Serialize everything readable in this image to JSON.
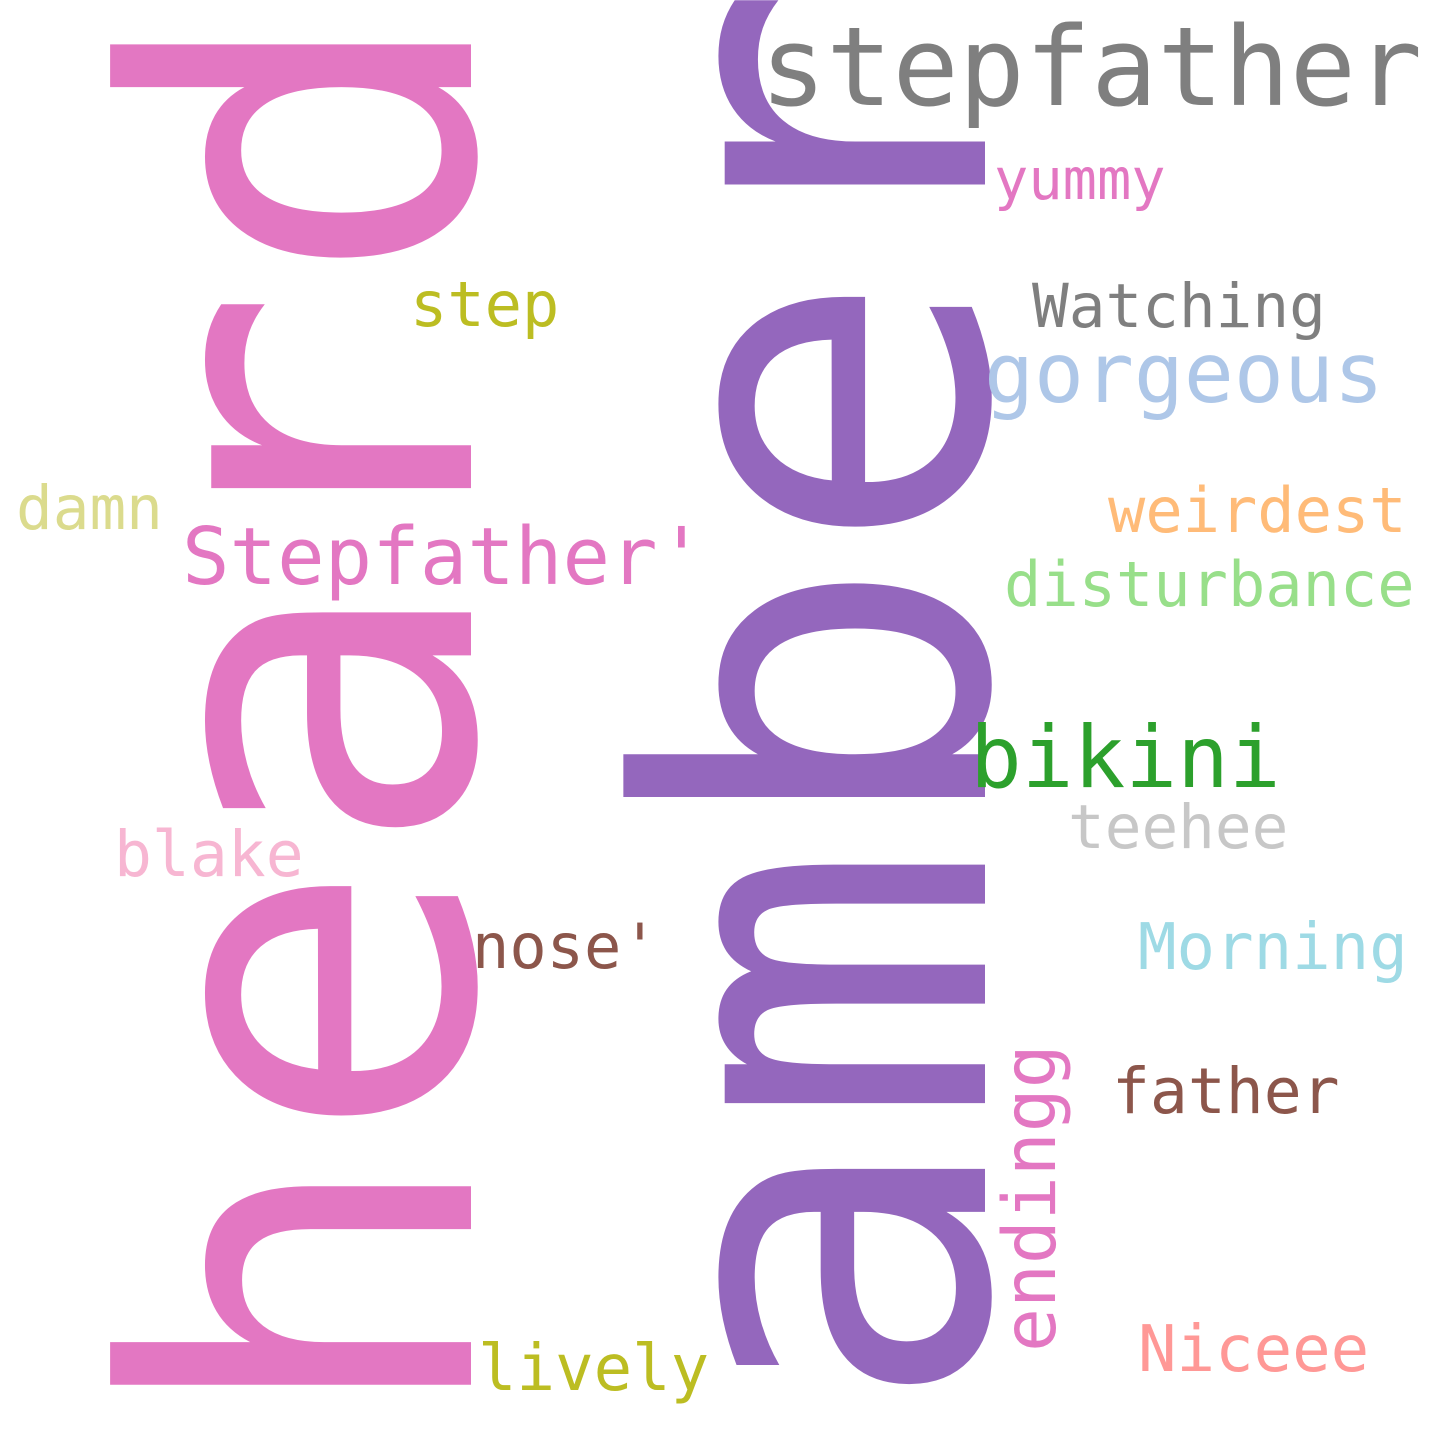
{
  "words": {
    "heard": {
      "text": "heard",
      "color": "#e377c2"
    },
    "amber": {
      "text": "amber",
      "color": "#9467bd"
    },
    "stepfather": {
      "text": "stepfather",
      "color": "#7f7f7f"
    },
    "yummy": {
      "text": "yummy",
      "color": "#e377c2"
    },
    "step": {
      "text": "step",
      "color": "#bcbd22"
    },
    "watching": {
      "text": "Watching",
      "color": "#7f7f7f"
    },
    "gorgeous": {
      "text": "gorgeous",
      "color": "#aec7e8"
    },
    "damn": {
      "text": "damn",
      "color": "#dbdb8d"
    },
    "weirdest": {
      "text": "weirdest",
      "color": "#ffbb78"
    },
    "stepfather2": {
      "text": "Stepfather'",
      "color": "#e377c2"
    },
    "disturbance": {
      "text": "disturbance",
      "color": "#98df8a"
    },
    "bikini": {
      "text": "bikini",
      "color": "#2ca02c"
    },
    "teehee": {
      "text": "teehee",
      "color": "#c7c7c7"
    },
    "blake": {
      "text": "blake",
      "color": "#f7b6d2"
    },
    "nose": {
      "text": "nose'",
      "color": "#8c564b"
    },
    "morning": {
      "text": "Morning",
      "color": "#9edae5"
    },
    "father": {
      "text": "father",
      "color": "#8c564b"
    },
    "endingg": {
      "text": "endingg",
      "color": "#e377c2"
    },
    "lively": {
      "text": "lively",
      "color": "#bcbd22"
    },
    "niceee": {
      "text": "Niceee",
      "color": "#ff9896"
    }
  }
}
